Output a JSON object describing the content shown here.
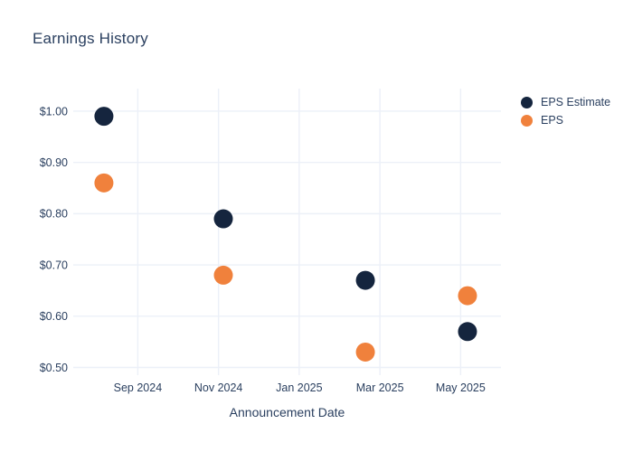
{
  "title": "Earnings History",
  "chart_data": {
    "type": "scatter",
    "title": "Earnings History",
    "xlabel": "Announcement Date",
    "ylabel": "",
    "grid": true,
    "legend_position": "right",
    "x_range": [
      -1.6,
      9.0
    ],
    "y_range": [
      0.485,
      1.044
    ],
    "x_ticks": [
      {
        "pos": 0,
        "label": "Sep 2024"
      },
      {
        "pos": 2,
        "label": "Nov 2024"
      },
      {
        "pos": 4,
        "label": "Jan 2025"
      },
      {
        "pos": 6,
        "label": "Mar 2025"
      },
      {
        "pos": 8,
        "label": "May 2025"
      }
    ],
    "y_ticks": [
      {
        "value": 1.0,
        "label": "$1.00"
      },
      {
        "value": 0.9,
        "label": "$0.90"
      },
      {
        "value": 0.8,
        "label": "$0.80"
      },
      {
        "value": 0.7,
        "label": "$0.70"
      },
      {
        "value": 0.6,
        "label": "$0.60"
      },
      {
        "value": 0.5,
        "label": "$0.50"
      }
    ],
    "series": [
      {
        "name": "EPS Estimate",
        "color": "#15253E",
        "points": [
          {
            "x": -0.84,
            "y": 0.99
          },
          {
            "x": 2.12,
            "y": 0.79
          },
          {
            "x": 5.64,
            "y": 0.67
          },
          {
            "x": 8.17,
            "y": 0.57
          }
        ]
      },
      {
        "name": "EPS",
        "color": "#F0813C",
        "points": [
          {
            "x": -0.84,
            "y": 0.86
          },
          {
            "x": 2.12,
            "y": 0.68
          },
          {
            "x": 5.64,
            "y": 0.53
          },
          {
            "x": 8.17,
            "y": 0.64
          }
        ]
      }
    ]
  },
  "legend": {
    "items": [
      {
        "label": "EPS Estimate",
        "color": "#15253E"
      },
      {
        "label": "EPS",
        "color": "#F0813C"
      }
    ]
  },
  "colors": {
    "text": "#2a3f5f",
    "gridline": "#ecf0f8",
    "background": "#ffffff"
  }
}
